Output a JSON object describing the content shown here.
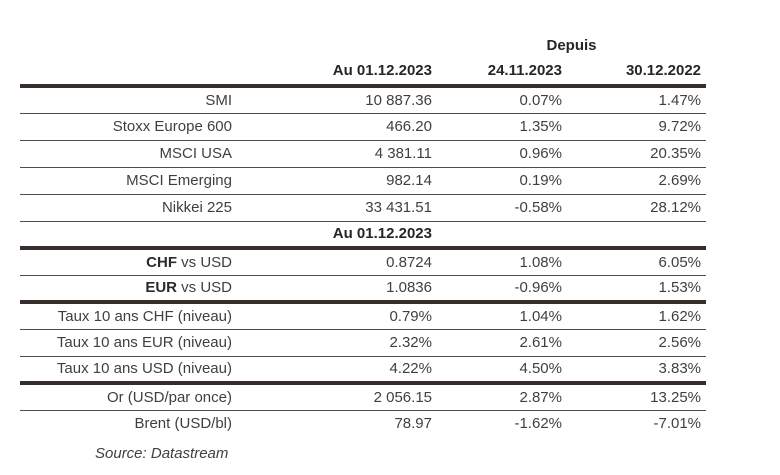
{
  "header": {
    "depuis": "Depuis",
    "col_au": "Au 01.12.2023",
    "col_prev": "24.11.2023",
    "col_ytd": "30.12.2022"
  },
  "indices": [
    {
      "label": "SMI",
      "values": [
        "10 887.36",
        "0.07%",
        "1.47%"
      ]
    },
    {
      "label": "Stoxx Europe 600",
      "values": [
        "466.20",
        "1.35%",
        "9.72%"
      ]
    },
    {
      "label": "MSCI USA",
      "values": [
        "4 381.11",
        "0.96%",
        "20.35%"
      ]
    },
    {
      "label": "MSCI Emerging",
      "values": [
        "982.14",
        "0.19%",
        "2.69%"
      ]
    },
    {
      "label": "Nikkei 225",
      "values": [
        "33 431.51",
        "-0.58%",
        "28.12%"
      ]
    }
  ],
  "subheader": "Au 01.12.2023",
  "fx": [
    {
      "label_bold": "CHF",
      "label_rest": " vs USD",
      "values": [
        "0.8724",
        "1.08%",
        "6.05%"
      ]
    },
    {
      "label_bold": "EUR",
      "label_rest": " vs USD",
      "values": [
        "1.0836",
        "-0.96%",
        "1.53%"
      ]
    }
  ],
  "rates": [
    {
      "label": "Taux 10 ans CHF (niveau)",
      "values": [
        "0.79%",
        "1.04%",
        "1.62%"
      ]
    },
    {
      "label": "Taux 10 ans EUR (niveau)",
      "values": [
        "2.32%",
        "2.61%",
        "2.56%"
      ]
    },
    {
      "label": "Taux 10 ans USD (niveau)",
      "values": [
        "4.22%",
        "4.50%",
        "3.83%"
      ]
    }
  ],
  "commodities": [
    {
      "label": "Or (USD/par once)",
      "values": [
        "2 056.15",
        "2.87%",
        "13.25%"
      ]
    },
    {
      "label": "Brent (USD/bl)",
      "values": [
        "78.97",
        "-1.62%",
        "-7.01%"
      ]
    }
  ],
  "source": "Source: Datastream"
}
